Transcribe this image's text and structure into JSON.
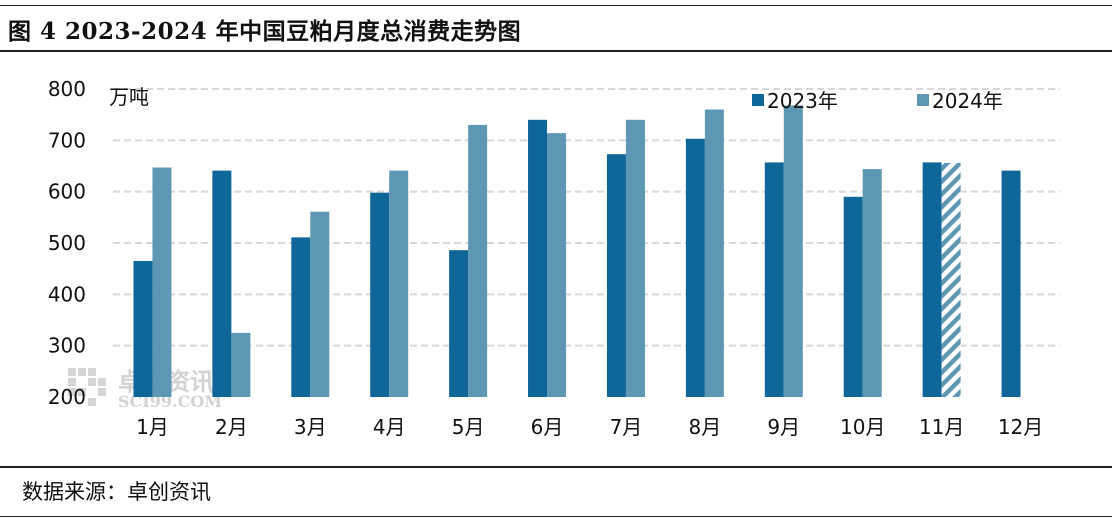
{
  "header": {
    "title": "图 4 2023-2024 年中国豆粕月度总消费走势图"
  },
  "footer": {
    "source": "数据来源：卓创资讯"
  },
  "watermark": {
    "name": "卓创资讯",
    "site": "SCI99.COM"
  },
  "colors": {
    "series_2023": "#0f6699",
    "series_2024": "#5d97b4",
    "grid": "#d8d8d8",
    "hatch_bg": "#ffffff"
  },
  "chart_data": {
    "type": "bar",
    "title": "图 4 2023-2024 年中国豆粕月度总消费走势图",
    "ylabel": "万吨",
    "xlabel": "",
    "ylim": [
      200,
      800
    ],
    "yticks": [
      200,
      300,
      400,
      500,
      600,
      700,
      800
    ],
    "grid": true,
    "legend": "top-right",
    "categories": [
      "1月",
      "2月",
      "3月",
      "4月",
      "5月",
      "6月",
      "7月",
      "8月",
      "9月",
      "10月",
      "11月",
      "12月"
    ],
    "series": [
      {
        "name": "2023年",
        "values": [
          465,
          641,
          511,
          598,
          486,
          740,
          673,
          703,
          657,
          590,
          657,
          641
        ]
      },
      {
        "name": "2024年",
        "values": [
          647,
          325,
          561,
          641,
          730,
          714,
          740,
          760,
          768,
          644,
          656,
          null
        ],
        "hatched_categories": [
          "11月"
        ]
      }
    ]
  }
}
